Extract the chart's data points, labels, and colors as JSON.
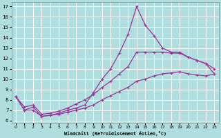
{
  "background_color": "#b0dede",
  "grid_color": "#ffffff",
  "line_color": "#993399",
  "xlabel": "Windchill (Refroidissement éolien,°C)",
  "xlim": [
    -0.5,
    23.5
  ],
  "ylim": [
    5.8,
    17.4
  ],
  "xticks": [
    0,
    1,
    2,
    3,
    4,
    5,
    6,
    7,
    8,
    9,
    10,
    11,
    12,
    13,
    14,
    15,
    16,
    17,
    18,
    19,
    20,
    21,
    22,
    23
  ],
  "yticks": [
    6,
    7,
    8,
    9,
    10,
    11,
    12,
    13,
    14,
    15,
    16,
    17
  ],
  "line1_x": [
    0,
    1,
    2,
    3,
    4,
    5,
    6,
    7,
    8,
    9,
    10,
    11,
    12,
    13,
    14,
    15,
    16,
    17,
    18,
    19,
    20,
    21,
    22,
    23
  ],
  "line1_y": [
    8.3,
    7.0,
    7.3,
    6.4,
    6.5,
    6.7,
    7.0,
    7.2,
    7.5,
    8.7,
    10.0,
    11.0,
    12.5,
    14.3,
    17.0,
    15.2,
    14.2,
    13.0,
    12.6,
    12.6,
    12.1,
    11.8,
    11.5,
    11.0
  ],
  "line2_x": [
    0,
    1,
    2,
    3,
    4,
    5,
    6,
    7,
    8,
    9,
    10,
    11,
    12,
    13,
    14,
    15,
    16,
    17,
    18,
    19,
    20,
    21,
    22,
    23
  ],
  "line2_y": [
    8.3,
    7.3,
    7.5,
    6.6,
    6.7,
    6.9,
    7.2,
    7.6,
    8.0,
    8.5,
    9.2,
    9.8,
    10.5,
    11.2,
    12.6,
    12.6,
    12.6,
    12.6,
    12.5,
    12.5,
    12.1,
    11.8,
    11.5,
    10.5
  ],
  "line3_x": [
    0,
    1,
    2,
    3,
    4,
    5,
    6,
    7,
    8,
    9,
    10,
    11,
    12,
    13,
    14,
    15,
    16,
    17,
    18,
    19,
    20,
    21,
    22,
    23
  ],
  "line3_y": [
    8.3,
    7.0,
    7.0,
    6.4,
    6.5,
    6.6,
    6.8,
    7.0,
    7.2,
    7.5,
    8.0,
    8.4,
    8.8,
    9.2,
    9.8,
    10.0,
    10.3,
    10.5,
    10.6,
    10.7,
    10.5,
    10.4,
    10.3,
    10.5
  ]
}
